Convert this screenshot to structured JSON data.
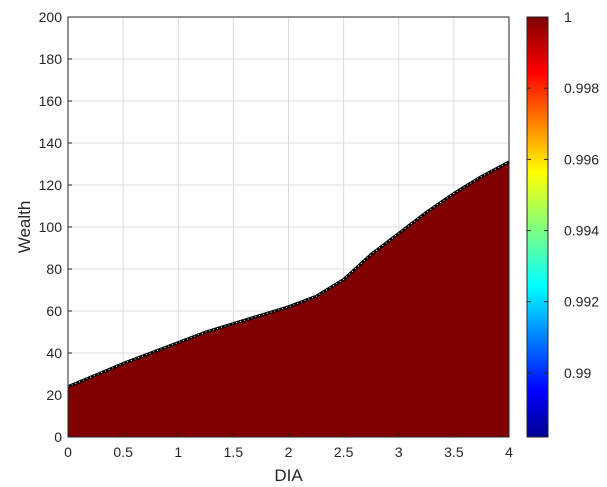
{
  "chart_data": {
    "type": "area",
    "title": "",
    "xlabel": "DIA",
    "ylabel": "Wealth",
    "xlim": [
      0,
      4
    ],
    "ylim": [
      0,
      200
    ],
    "xticks": [
      0,
      0.5,
      1,
      1.5,
      2,
      2.5,
      3,
      3.5,
      4
    ],
    "xtick_labels": [
      "0",
      "0.5",
      "1",
      "1.5",
      "2",
      "2.5",
      "3",
      "3.5",
      "4"
    ],
    "yticks": [
      0,
      20,
      40,
      60,
      80,
      100,
      120,
      140,
      160,
      180,
      200
    ],
    "ytick_labels": [
      "0",
      "20",
      "40",
      "60",
      "80",
      "100",
      "120",
      "140",
      "160",
      "180",
      "200"
    ],
    "grid": true,
    "fill_color": "#800000",
    "boundary_color": "#000000",
    "series": [
      {
        "x": [
          0,
          0.25,
          0.5,
          0.75,
          1,
          1.25,
          1.5,
          1.75,
          2,
          2.25,
          2.5,
          2.75,
          3,
          3.25,
          3.5,
          3.75,
          4
        ],
        "values": [
          24,
          29.5,
          35,
          40,
          45,
          50,
          54,
          58,
          62,
          67,
          75,
          87,
          97,
          107,
          116,
          124,
          131
        ]
      }
    ],
    "colorbar": {
      "range": [
        0.9882,
        1
      ],
      "ticks": [
        0.99,
        0.992,
        0.994,
        0.996,
        0.998,
        1
      ],
      "tick_labels": [
        "0.99",
        "0.992",
        "0.994",
        "0.996",
        "0.998",
        "1"
      ],
      "colormap": "jet",
      "colormap_stops": [
        "#00008f",
        "#0000ff",
        "#00ffff",
        "#ffff00",
        "#ff0000",
        "#800000"
      ]
    }
  }
}
